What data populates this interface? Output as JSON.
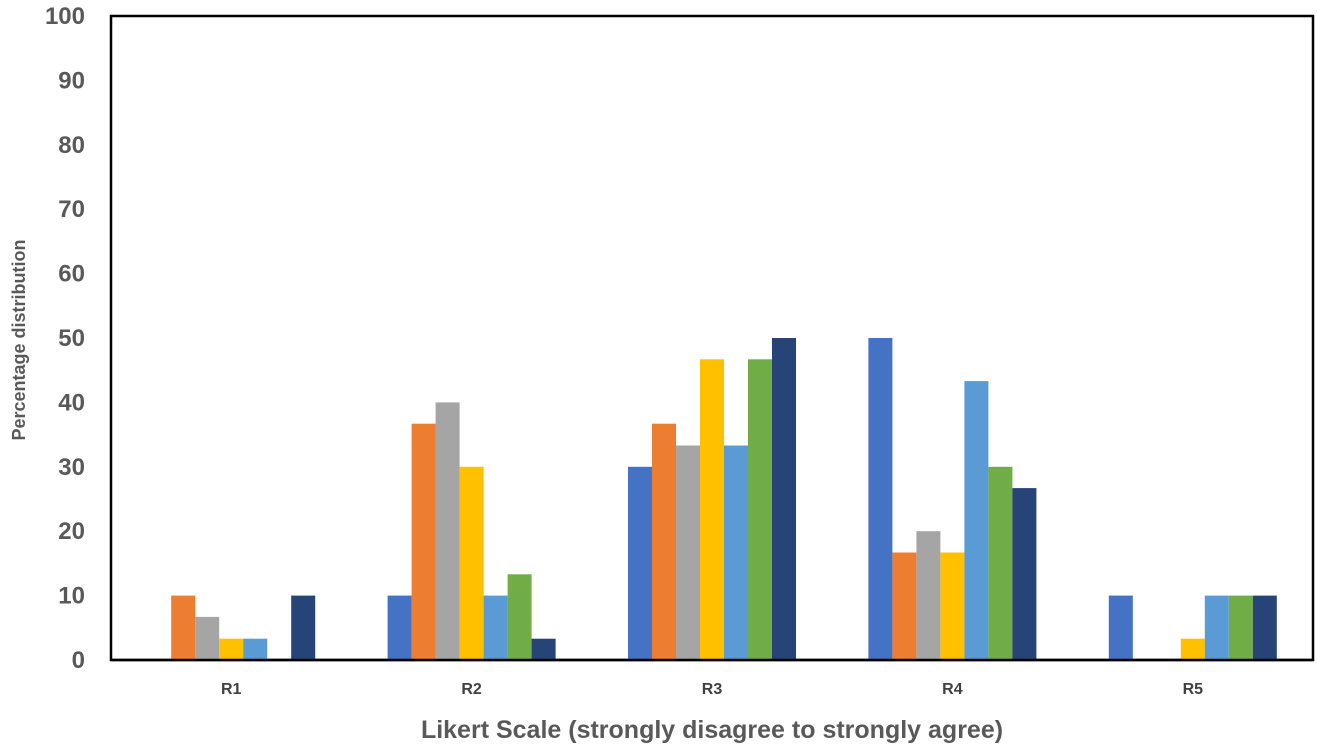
{
  "chart_data": {
    "type": "bar",
    "title": "",
    "xlabel": "Likert Scale (strongly disagree to strongly agree)",
    "ylabel": "Percentage distribution",
    "categories": [
      "R1",
      "R2",
      "R3",
      "R4",
      "R5"
    ],
    "ylim": [
      0,
      100
    ],
    "yticks": [
      "0",
      "10",
      "20",
      "30",
      "40",
      "50",
      "60",
      "70",
      "80",
      "90",
      "100"
    ],
    "grid": false,
    "legend": "none",
    "series": [
      {
        "color": "#4472C4",
        "values": [
          0,
          10,
          30,
          50,
          10
        ]
      },
      {
        "color": "#ED7D31",
        "values": [
          10,
          36.7,
          36.7,
          16.7,
          0
        ]
      },
      {
        "color": "#A5A5A5",
        "values": [
          6.7,
          40,
          33.3,
          20,
          0
        ]
      },
      {
        "color": "#FFC000",
        "values": [
          3.3,
          30,
          46.7,
          16.7,
          3.3
        ]
      },
      {
        "color": "#5B9BD5",
        "values": [
          3.3,
          10,
          33.3,
          43.3,
          10
        ]
      },
      {
        "color": "#70AD47",
        "values": [
          0,
          13.3,
          46.7,
          30,
          10
        ]
      },
      {
        "color": "#264478",
        "values": [
          10,
          3.3,
          50,
          26.7,
          10
        ]
      }
    ]
  }
}
